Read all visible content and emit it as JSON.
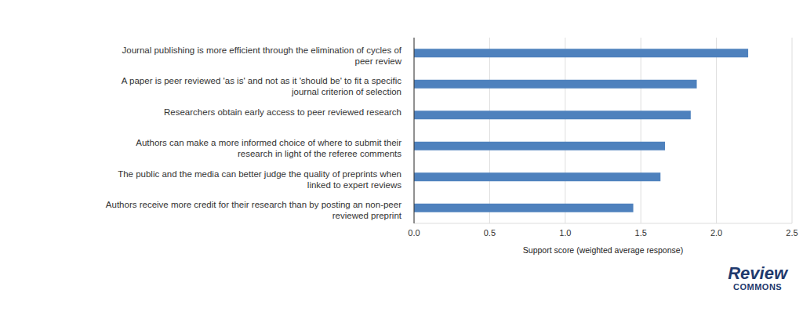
{
  "chart_data": {
    "type": "bar",
    "orientation": "horizontal",
    "categories": [
      "Journal publishing is more efficient through the elimination of cycles of peer review",
      "A paper is peer reviewed 'as is' and not as it 'should be' to fit a specific journal criterion of selection",
      "Researchers obtain early access to peer reviewed research",
      "Authors can make a more informed choice of where to submit their research in light of the referee comments",
      "The public and the media can better judge the quality of preprints when linked to expert reviews",
      "Authors receive more credit for their research than by posting an non-peer reviewed preprint"
    ],
    "values": [
      2.21,
      1.87,
      1.83,
      1.66,
      1.63,
      1.45
    ],
    "color": "#4e81bd",
    "xlabel": "Support score (weighted average response)",
    "xlim": [
      0,
      2.5
    ],
    "xticks": [
      {
        "value": 0,
        "label": "0.0"
      },
      0.5,
      {
        "value": 1,
        "label": "1.0"
      },
      1.5,
      {
        "value": 2,
        "label": "2.0"
      },
      2.5
    ],
    "grid": true,
    "annotations": [
      "Review",
      "COMMONS"
    ]
  }
}
